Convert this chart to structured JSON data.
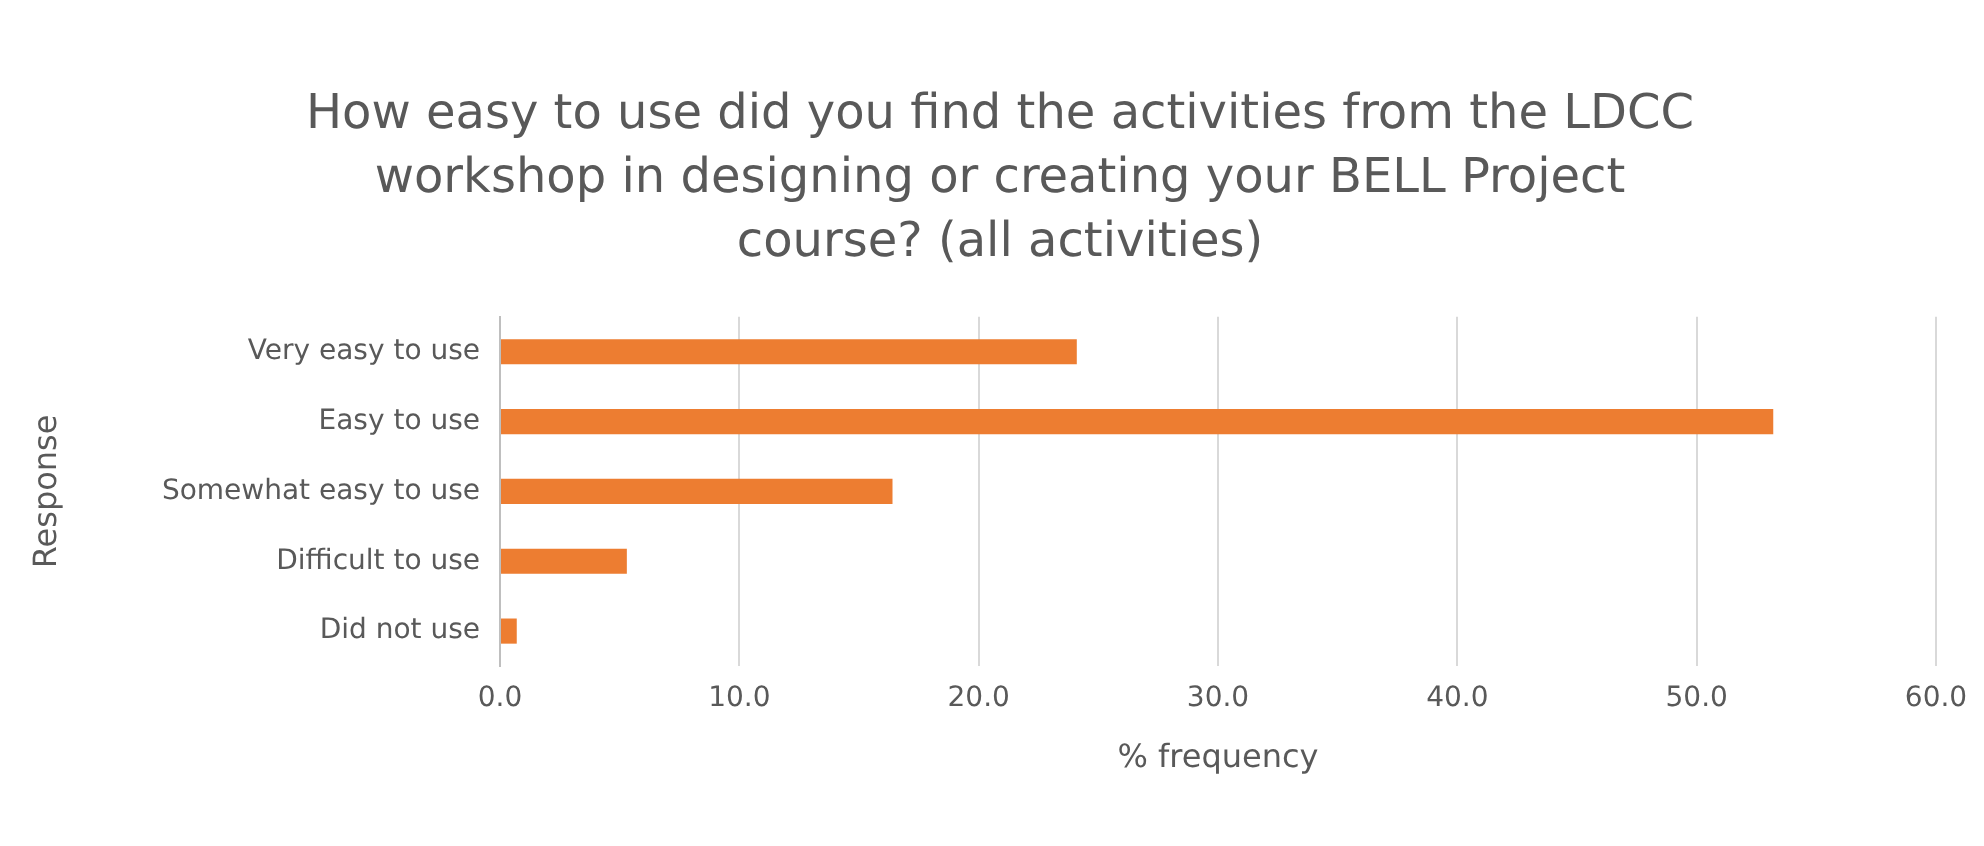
{
  "chart_data": {
    "type": "bar",
    "orientation": "horizontal",
    "title": "How easy to use did you find the activities from the LDCC workshop in designing or creating your BELL Project course? (all activities)",
    "xlabel": "% frequency",
    "ylabel": "Response",
    "categories": [
      "Very easy to use",
      "Easy to use",
      "Somewhat easy to use",
      "Difficult to use",
      "Did not use"
    ],
    "values": [
      24.1,
      53.2,
      16.4,
      5.3,
      0.7
    ],
    "color": "#ed7d31",
    "xlim": [
      0,
      60
    ],
    "xticks": [
      {
        "value": 0,
        "label": "0.0"
      },
      {
        "value": 10,
        "label": "10.0"
      },
      {
        "value": 20,
        "label": "20.0"
      },
      {
        "value": 30,
        "label": "30.0"
      },
      {
        "value": 40,
        "label": "40.0"
      },
      {
        "value": 50,
        "label": "50.0"
      },
      {
        "value": 60,
        "label": "60.0"
      }
    ],
    "grid": "x",
    "legend": false
  }
}
